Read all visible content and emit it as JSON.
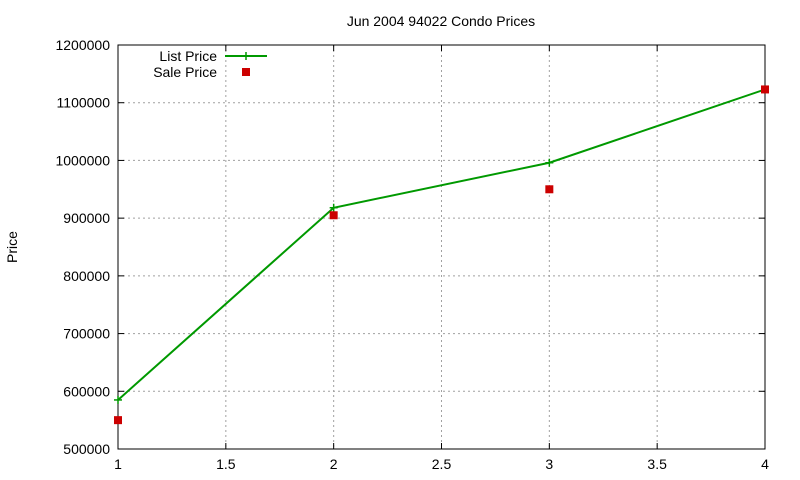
{
  "chart_data": {
    "type": "line",
    "title": "Jun 2004 94022 Condo Prices",
    "xlabel": "",
    "ylabel": "Price",
    "xlim": [
      1,
      4
    ],
    "ylim": [
      500000,
      1200000
    ],
    "x_ticks": [
      "1",
      "1.5",
      "2",
      "2.5",
      "3",
      "3.5",
      "4"
    ],
    "y_ticks": [
      "500000",
      "600000",
      "700000",
      "800000",
      "900000",
      "1000000",
      "1100000",
      "1200000"
    ],
    "grid": true,
    "legend_position": "top-left",
    "series": [
      {
        "name": "List Price",
        "style": "line+plus",
        "color": "#009900",
        "x": [
          1,
          2,
          3,
          4
        ],
        "y": [
          585000,
          918000,
          996000,
          1123000
        ]
      },
      {
        "name": "Sale Price",
        "style": "square",
        "color": "#cc0000",
        "x": [
          1,
          2,
          3,
          4
        ],
        "y": [
          550000,
          905000,
          950000,
          1123000
        ]
      }
    ]
  }
}
